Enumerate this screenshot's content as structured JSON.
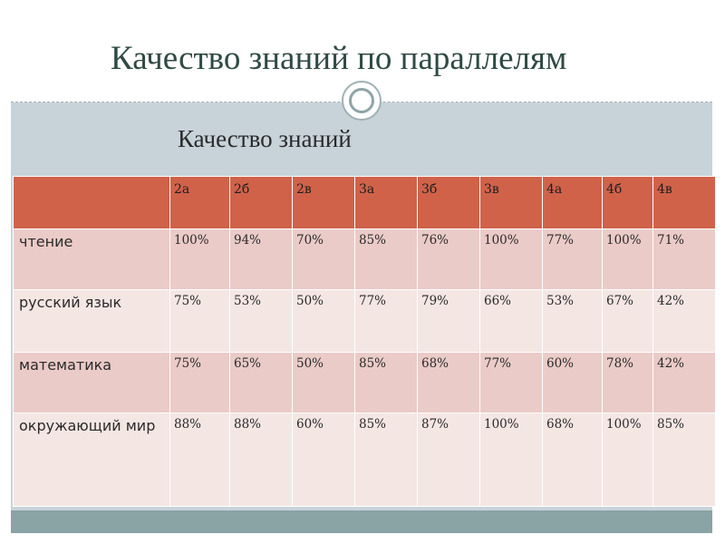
{
  "slide": {
    "title": "Качество знаний по параллелям",
    "subtitle": "Качество знаний"
  },
  "table": {
    "corner": "",
    "columns": [
      "2а",
      "2б",
      "2в",
      "3а",
      "3б",
      "3в",
      "4а",
      "4б",
      "4в"
    ],
    "rows": [
      {
        "label": "чтение",
        "values": [
          "100%",
          "94%",
          "70%",
          "85%",
          "76%",
          "100%",
          "77%",
          "100%",
          "71%"
        ]
      },
      {
        "label": "русский язык",
        "values": [
          "75%",
          "53%",
          "50%",
          "77%",
          "79%",
          "66%",
          "53%",
          "67%",
          "42%"
        ]
      },
      {
        "label": "математика",
        "values": [
          "75%",
          "65%",
          "50%",
          "85%",
          "68%",
          "77%",
          "60%",
          "78%",
          "42%"
        ]
      },
      {
        "label": "окружающий мир",
        "values": [
          "88%",
          "88%",
          "60%",
          "85%",
          "87%",
          "100%",
          "68%",
          "100%",
          "85%"
        ]
      }
    ]
  },
  "colors": {
    "header": "#d0624a",
    "row_dark": "#eacbc7",
    "row_light": "#f4e6e3",
    "slide_bg": "#c8d3d9",
    "footer": "#8aa3a4",
    "title": "#2f4a44"
  }
}
